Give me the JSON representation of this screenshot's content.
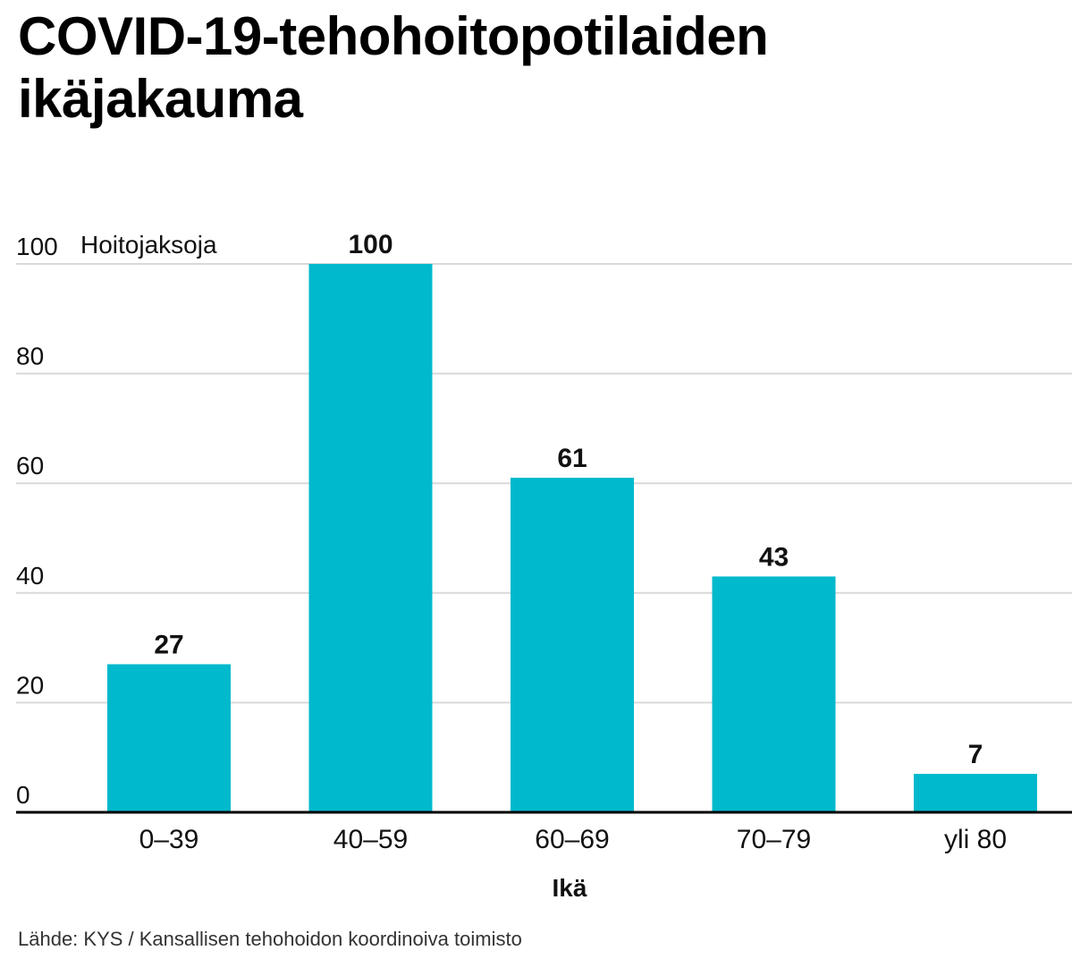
{
  "title": "COVID-19-tehohoitopotilaiden ikäjakauma",
  "source": "Lähde: KYS / Kansallisen tehohoidon koordinoiva toimisto",
  "colors": {
    "bar": "#00b9cc",
    "grid": "#d9d9d9",
    "axis": "#000000",
    "text": "#111111"
  },
  "chart_data": {
    "type": "bar",
    "title": "COVID-19-tehohoitopotilaiden ikäjakauma",
    "categories": [
      "0–39",
      "40–59",
      "60–69",
      "70–79",
      "yli 80"
    ],
    "values": [
      27,
      100,
      61,
      43,
      7
    ],
    "value_labels": [
      "27",
      "100",
      "61",
      "43",
      "7"
    ],
    "xlabel": "Ikä",
    "ylabel": "Hoitojaksoja",
    "ylim": [
      0,
      100
    ],
    "yticks": [
      0,
      20,
      40,
      60,
      80,
      100
    ],
    "grid": true,
    "legend": "none"
  }
}
